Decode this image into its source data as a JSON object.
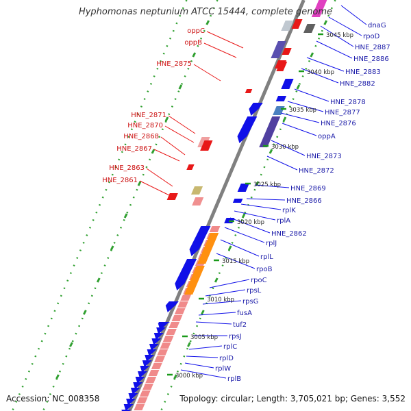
{
  "title": "Hyphomonas neptunium ATCC 15444, complete genome",
  "accession": "Accession: NC_008358",
  "topology": "Topology: circular; Length: 3,705,021 bp; Genes: 3,552",
  "colors": {
    "backbone": "#808080",
    "blue_gene": "#1010e8",
    "red_gene": "#e81818",
    "orange_gene": "#ff9010",
    "pink_gene": "#f08a8a",
    "dot_green": "#30a030",
    "label_red": "#cc1111",
    "label_blue": "#1a1aa8"
  },
  "kbp_ticks": [
    "3045 kbp",
    "3040 kbp",
    "3035 kbp",
    "3030 kbp",
    "3025 kbp",
    "3020 kbp",
    "3015 kbp",
    "3010 kbp",
    "3005 kbp",
    "3000 kbp"
  ],
  "labels_left": [
    "oppC",
    "oppB",
    "HNE_2875",
    "HNE_2871",
    "HNE_2870",
    "HNE_2868",
    "HNE_2867",
    "HNE_2863",
    "HNE_2861"
  ],
  "labels_right": [
    "dnaG",
    "rpoD",
    "HNE_2887",
    "HNE_2886",
    "HNE_2883",
    "HNE_2882",
    "HNE_2878",
    "HNE_2877",
    "HNE_2876",
    "oppA",
    "HNE_2873",
    "HNE_2872",
    "HNE_2869",
    "HNE_2866",
    "rplK",
    "rplA",
    "HNE_2862",
    "rplJ",
    "rplL",
    "rpoB",
    "rpoC",
    "rpsL",
    "rpsG",
    "fusA",
    "tuf2",
    "rpsJ",
    "rplC",
    "rplD",
    "rplW",
    "rplB"
  ]
}
